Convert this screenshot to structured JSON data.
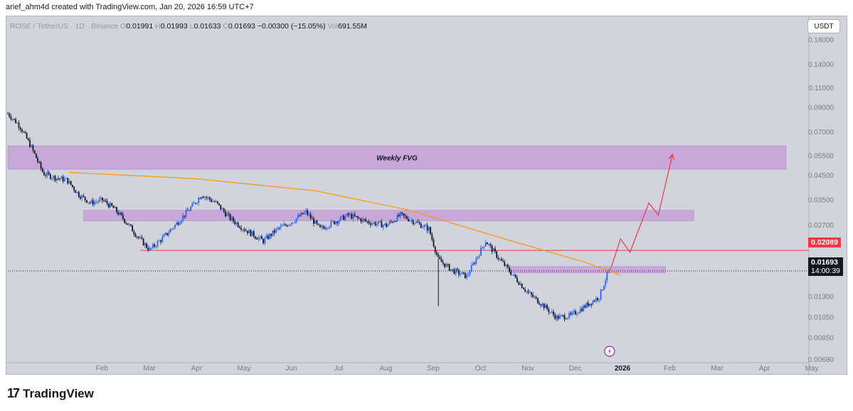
{
  "header": {
    "attribution": "arief_ahm4d created with TradingView.com, Jan 20, 2026 16:59 UTC+7"
  },
  "legend": {
    "symbol": "ROSE / TetherUS · 1D · Binance",
    "o_label": "O",
    "open": "0.01991",
    "h_label": "H",
    "high": "0.01993",
    "l_label": "L",
    "low": "0.01633",
    "c_label": "C",
    "close": "0.01693",
    "change": "−0.00300 (−15.05%)",
    "vol_label": "Vol",
    "volume": "691.55M"
  },
  "currency_button": "USDT",
  "price_tags": {
    "resistance": "0.02089",
    "current": "0.01693",
    "countdown": "14:00:39"
  },
  "annotations": {
    "fvg_label": "Weekly FVG"
  },
  "footer": {
    "brand": "TradingView"
  },
  "colors": {
    "background": "#d1d4dc",
    "candle_up": "#2962ff",
    "candle_down": "#131722",
    "zone": "#c49ad8",
    "curve": "#ff9800",
    "resistance_line": "#f23645",
    "projection": "#f23645"
  },
  "chart_data": {
    "type": "candlestick",
    "symbol": "ROSE/USDT",
    "timeframe": "1D",
    "y_scale": "log",
    "ylim": [
      0.0058,
      0.23
    ],
    "y_ticks": [
      0.18,
      0.14,
      0.11,
      0.09,
      0.07,
      0.055,
      0.045,
      0.035,
      0.027,
      0.013,
      0.0105,
      0.0085,
      0.0068
    ],
    "y_tick_labels": [
      "0.18000",
      "0.14000",
      "0.11000",
      "0.09000",
      "0.07000",
      "0.05500",
      "0.04500",
      "0.03500",
      "0.02700",
      "0.01300",
      "0.01050",
      "0.00850",
      "0.00680"
    ],
    "x_tick_labels": [
      "Feb",
      "Mar",
      "Apr",
      "May",
      "Jun",
      "Jul",
      "Aug",
      "Sep",
      "Oct",
      "Nov",
      "Dec",
      "2026",
      "Feb",
      "Mar",
      "Apr",
      "May"
    ],
    "x_tick_months": [
      1,
      2,
      3,
      4,
      5,
      6,
      7,
      8,
      9,
      10,
      11,
      12,
      13,
      14,
      15,
      16
    ],
    "price_path": [
      [
        0.0,
        0.085
      ],
      [
        0.25,
        0.075
      ],
      [
        0.5,
        0.06
      ],
      [
        0.75,
        0.046
      ],
      [
        1.0,
        0.044
      ],
      [
        1.25,
        0.043
      ],
      [
        1.5,
        0.037
      ],
      [
        1.75,
        0.034
      ],
      [
        2.0,
        0.035
      ],
      [
        2.25,
        0.032
      ],
      [
        2.5,
        0.028
      ],
      [
        2.75,
        0.024
      ],
      [
        3.0,
        0.021
      ],
      [
        3.3,
        0.024
      ],
      [
        3.6,
        0.028
      ],
      [
        3.9,
        0.033
      ],
      [
        4.1,
        0.037
      ],
      [
        4.4,
        0.034
      ],
      [
        4.7,
        0.029
      ],
      [
        5.0,
        0.026
      ],
      [
        5.4,
        0.023
      ],
      [
        5.7,
        0.026
      ],
      [
        6.0,
        0.028
      ],
      [
        6.3,
        0.031
      ],
      [
        6.6,
        0.026
      ],
      [
        6.9,
        0.028
      ],
      [
        7.2,
        0.03
      ],
      [
        7.6,
        0.028
      ],
      [
        8.0,
        0.027
      ],
      [
        8.3,
        0.03
      ],
      [
        8.6,
        0.028
      ],
      [
        8.9,
        0.026
      ],
      [
        9.1,
        0.019
      ],
      [
        9.4,
        0.017
      ],
      [
        9.7,
        0.016
      ],
      [
        10.1,
        0.023
      ],
      [
        10.4,
        0.019
      ],
      [
        10.7,
        0.016
      ],
      [
        11.0,
        0.0135
      ],
      [
        11.3,
        0.012
      ],
      [
        11.6,
        0.0105
      ],
      [
        11.9,
        0.0107
      ],
      [
        12.2,
        0.0118
      ],
      [
        12.5,
        0.013
      ],
      [
        12.7,
        0.017
      ],
      [
        12.75,
        0.01693
      ]
    ],
    "current_price": 0.01693,
    "zones": [
      {
        "label": "Weekly FVG",
        "low": 0.048,
        "high": 0.061,
        "from_month": 0.0,
        "to_month": 16.45
      },
      {
        "label": "",
        "low": 0.0283,
        "high": 0.0315,
        "from_month": 1.6,
        "to_month": 14.5
      },
      {
        "label": "",
        "low": 0.0166,
        "high": 0.0177,
        "from_month": 10.6,
        "to_month": 13.9
      }
    ],
    "horizontal_lines": [
      {
        "price": 0.02089,
        "from_month": 2.8,
        "color": "#f23645"
      },
      {
        "price": 0.01693,
        "from_month": 0.0,
        "style": "dotted",
        "color": "#131722"
      }
    ],
    "curve": [
      [
        1.3,
        0.0465
      ],
      [
        4.0,
        0.0435
      ],
      [
        6.5,
        0.0385
      ],
      [
        8.5,
        0.0315
      ],
      [
        10.5,
        0.0235
      ],
      [
        12.2,
        0.0185
      ],
      [
        12.95,
        0.0162
      ]
    ],
    "projection": [
      [
        12.75,
        0.0175
      ],
      [
        12.95,
        0.0235
      ],
      [
        13.15,
        0.0205
      ],
      [
        13.55,
        0.034
      ],
      [
        13.75,
        0.03
      ],
      [
        14.05,
        0.056
      ]
    ],
    "lightning_icon_month": 12.72
  }
}
